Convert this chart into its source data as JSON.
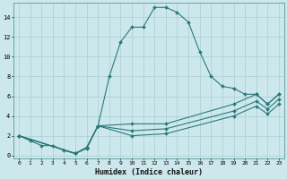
{
  "xlabel": "Humidex (Indice chaleur)",
  "bg_color": "#cce8ec",
  "grid_color": "#aacdd2",
  "line_color": "#2a7a7a",
  "xlim": [
    -0.5,
    23.5
  ],
  "ylim": [
    -0.3,
    15.5
  ],
  "xticks": [
    0,
    1,
    2,
    3,
    4,
    5,
    6,
    7,
    8,
    9,
    10,
    11,
    12,
    13,
    14,
    15,
    16,
    17,
    18,
    19,
    20,
    21,
    22,
    23
  ],
  "yticks": [
    0,
    2,
    4,
    6,
    8,
    10,
    12,
    14
  ],
  "line1_x": [
    0,
    1,
    2,
    3,
    4,
    5,
    6,
    7,
    8,
    9,
    10,
    11,
    12,
    13,
    14,
    15,
    16,
    17,
    18,
    19,
    20,
    21,
    22,
    23
  ],
  "line1_y": [
    2,
    1.5,
    1,
    1,
    0.5,
    0.2,
    0.7,
    3,
    8,
    11.5,
    13,
    13,
    15,
    15,
    14.5,
    13.5,
    10.5,
    8,
    7,
    6.8,
    6.2,
    6.2,
    5.2,
    6.2
  ],
  "line2_x": [
    0,
    5,
    6,
    7,
    10,
    13,
    19,
    21,
    22,
    23
  ],
  "line2_y": [
    2,
    0.2,
    0.8,
    3,
    3.2,
    3.2,
    5.2,
    6.2,
    5.2,
    6.2
  ],
  "line3_x": [
    0,
    5,
    6,
    7,
    10,
    13,
    19,
    21,
    22,
    23
  ],
  "line3_y": [
    2,
    0.2,
    0.8,
    3,
    2.5,
    2.7,
    4.5,
    5.5,
    4.7,
    5.7
  ],
  "line4_x": [
    0,
    5,
    6,
    7,
    10,
    13,
    19,
    21,
    22,
    23
  ],
  "line4_y": [
    2,
    0.2,
    0.8,
    3,
    2.0,
    2.2,
    4.0,
    5.0,
    4.2,
    5.2
  ]
}
